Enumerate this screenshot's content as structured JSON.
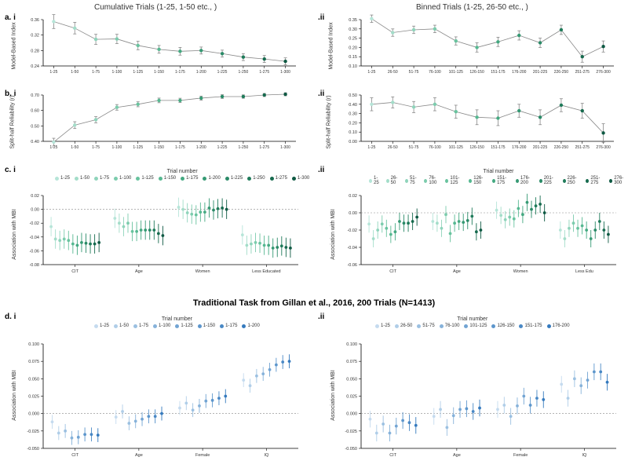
{
  "headers": {
    "left": "Cumulative Trials (1-25, 1-50 etc., )",
    "right": "Binned Trials (1-25, 26-50 etc., )"
  },
  "section_title": "Traditional Task from Gillan et al., 2016, 200 Trials (N=1413)",
  "palette_green": [
    "#b6e5d8",
    "#a3ddc9",
    "#8fd4bb",
    "#7cccad",
    "#68c39e",
    "#56b891",
    "#44a981",
    "#369a74",
    "#2a8a67",
    "#1f7b5a",
    "#166a4e",
    "#0e5943"
  ],
  "palette_blue": [
    "#c5dbef",
    "#b0cee8",
    "#9bc0e1",
    "#86b2da",
    "#72a4d3",
    "#5d96cc",
    "#4988c5",
    "#357abe",
    "#276bb0",
    "#1c5d9e",
    "#134e8c",
    "#0b3f7a"
  ],
  "panel_a_i": {
    "label": "a. i",
    "ylabel": "Model-Based Index",
    "ylim": [
      0.24,
      0.36
    ],
    "yticks": [
      0.24,
      0.28,
      0.32,
      0.36
    ],
    "x": [
      "1-25",
      "1-50",
      "1-75",
      "1-100",
      "1-125",
      "1-150",
      "1-175",
      "1-200",
      "1-225",
      "1-250",
      "1-275",
      "1-300"
    ],
    "values": [
      0.355,
      0.338,
      0.309,
      0.31,
      0.293,
      0.283,
      0.278,
      0.28,
      0.272,
      0.263,
      0.258,
      0.252
    ],
    "err": [
      0.018,
      0.015,
      0.013,
      0.012,
      0.011,
      0.01,
      0.01,
      0.009,
      0.009,
      0.009,
      0.009,
      0.009
    ]
  },
  "panel_a_ii": {
    "label": ".ii",
    "ylabel": "Model-Based Index",
    "ylim": [
      0.1,
      0.35
    ],
    "yticks": [
      0.1,
      0.15,
      0.2,
      0.25,
      0.3,
      0.35
    ],
    "x": [
      "1-25",
      "26-50",
      "51-75",
      "76-100",
      "101-125",
      "126-150",
      "151-175",
      "176-200",
      "201-225",
      "226-250",
      "251-275",
      "276-300"
    ],
    "values": [
      0.355,
      0.28,
      0.295,
      0.3,
      0.235,
      0.2,
      0.23,
      0.265,
      0.225,
      0.295,
      0.15,
      0.205
    ],
    "err": [
      0.02,
      0.02,
      0.02,
      0.02,
      0.022,
      0.025,
      0.025,
      0.025,
      0.025,
      0.025,
      0.03,
      0.03
    ]
  },
  "panel_b_i": {
    "label": "b. i",
    "ylabel": "Split-half Reliability (r)",
    "ylim": [
      0.4,
      0.7
    ],
    "yticks": [
      0.4,
      0.5,
      0.6,
      0.7
    ],
    "x": [
      "1-25",
      "1-50",
      "1-75",
      "1-100",
      "1-125",
      "1-150",
      "1-175",
      "1-200",
      "1-225",
      "1-250",
      "1-275",
      "1-300"
    ],
    "values": [
      0.395,
      0.505,
      0.54,
      0.62,
      0.64,
      0.665,
      0.665,
      0.68,
      0.69,
      0.69,
      0.7,
      0.705
    ],
    "err": [
      0.025,
      0.022,
      0.02,
      0.018,
      0.016,
      0.015,
      0.014,
      0.013,
      0.012,
      0.011,
      0.01,
      0.01
    ]
  },
  "panel_b_ii": {
    "label": ".ii",
    "ylabel": "Split-half Reliability (r)",
    "ylim": [
      0.0,
      0.5
    ],
    "yticks": [
      0.0,
      0.1,
      0.2,
      0.3,
      0.4,
      0.5
    ],
    "x": [
      "1-25",
      "26-50",
      "51-75",
      "76-100",
      "101-125",
      "126-150",
      "151-175",
      "176-200",
      "201-225",
      "226-250",
      "251-275",
      "276-300"
    ],
    "values": [
      0.4,
      0.42,
      0.37,
      0.4,
      0.32,
      0.26,
      0.25,
      0.33,
      0.26,
      0.39,
      0.33,
      0.09
    ],
    "err": [
      0.07,
      0.06,
      0.06,
      0.07,
      0.07,
      0.08,
      0.08,
      0.07,
      0.08,
      0.07,
      0.08,
      0.1
    ]
  },
  "panel_c_i": {
    "label": "c. i",
    "ylabel": "Association with MBI",
    "ylim": [
      -0.08,
      0.02
    ],
    "yticks": [
      -0.08,
      -0.06,
      -0.04,
      -0.02,
      0.0,
      0.02
    ],
    "legend_title": "Trial number",
    "legend": [
      "1-25",
      "1-50",
      "1-75",
      "1-100",
      "1-125",
      "1-150",
      "1-175",
      "1-200",
      "1-225",
      "1-250",
      "1-275",
      "1-300"
    ],
    "groups": [
      "CIT",
      "Age",
      "Women",
      "Less Educated"
    ],
    "series": [
      [
        -0.025,
        -0.043,
        -0.045,
        -0.043,
        -0.045,
        -0.05,
        -0.052,
        -0.048,
        -0.049,
        -0.05,
        -0.05,
        -0.048
      ],
      [
        -0.013,
        -0.02,
        -0.025,
        -0.02,
        -0.032,
        -0.032,
        -0.03,
        -0.03,
        -0.03,
        -0.03,
        -0.035,
        -0.038
      ],
      [
        0.003,
        0.0,
        -0.005,
        -0.007,
        -0.008,
        -0.004,
        -0.004,
        0.002,
        -0.001,
        0.001,
        0.002,
        0.0
      ],
      [
        -0.037,
        -0.052,
        -0.05,
        -0.048,
        -0.049,
        -0.052,
        -0.052,
        -0.056,
        -0.055,
        -0.053,
        -0.055,
        -0.056
      ]
    ],
    "err": 0.014
  },
  "panel_c_ii": {
    "label": ".ii",
    "ylabel": "Association with MBI",
    "ylim": [
      -0.06,
      0.02
    ],
    "yticks": [
      -0.06,
      -0.04,
      -0.02,
      0.0,
      0.02
    ],
    "legend_title": "Trial number",
    "legend": [
      "1-25",
      "26-50",
      "51-75",
      "76-100",
      "101-125",
      "126-150",
      "151-175",
      "176-200",
      "201-225",
      "226-250",
      "251-275",
      "276-300"
    ],
    "groups": [
      "CIT",
      "Age",
      "Women",
      "Less Edu"
    ],
    "series": [
      [
        -0.013,
        -0.03,
        -0.02,
        -0.013,
        -0.018,
        -0.025,
        -0.022,
        -0.01,
        -0.012,
        -0.012,
        -0.01,
        -0.005
      ],
      [
        -0.01,
        -0.012,
        -0.018,
        -0.002,
        -0.024,
        -0.012,
        -0.01,
        -0.011,
        -0.009,
        -0.004,
        -0.022,
        -0.02
      ],
      [
        0.003,
        -0.003,
        -0.008,
        -0.005,
        -0.007,
        0.005,
        -0.002,
        0.012,
        0.004,
        0.008,
        0.01,
        0.0
      ],
      [
        -0.02,
        -0.03,
        -0.018,
        -0.012,
        -0.018,
        -0.015,
        -0.02,
        -0.03,
        -0.02,
        -0.01,
        -0.02,
        -0.025
      ]
    ],
    "err": 0.01
  },
  "panel_d_i": {
    "label": "d. i",
    "ylabel": "Association with MBI",
    "ylim": [
      -0.05,
      0.1
    ],
    "yticks": [
      -0.05,
      -0.025,
      0.0,
      0.025,
      0.05,
      0.075,
      0.1
    ],
    "legend_title": "Trial number",
    "legend": [
      "1-25",
      "1-50",
      "1-75",
      "1-100",
      "1-125",
      "1-150",
      "1-175",
      "1-200"
    ],
    "groups": [
      "CIT",
      "Age",
      "Female",
      "IQ"
    ],
    "series": [
      [
        -0.012,
        -0.028,
        -0.025,
        -0.035,
        -0.034,
        -0.03,
        -0.03,
        -0.031
      ],
      [
        -0.005,
        0.003,
        -0.014,
        -0.011,
        -0.008,
        -0.004,
        -0.004,
        0.0
      ],
      [
        0.008,
        0.015,
        0.005,
        0.011,
        0.018,
        0.019,
        0.022,
        0.025
      ],
      [
        0.048,
        0.04,
        0.054,
        0.057,
        0.063,
        0.07,
        0.074,
        0.075
      ]
    ],
    "err": 0.01
  },
  "panel_d_ii": {
    "label": ".ii",
    "ylabel": "Association with MBI",
    "ylim": [
      -0.05,
      0.1
    ],
    "yticks": [
      -0.05,
      -0.025,
      0.0,
      0.025,
      0.05,
      0.075,
      0.1
    ],
    "legend_title": "Trial number",
    "legend": [
      "1-25",
      "26-50",
      "51-75",
      "76-100",
      "101-125",
      "126-150",
      "151-175",
      "176-200"
    ],
    "groups": [
      "CIT",
      "Age",
      "Female",
      "IQ"
    ],
    "series": [
      [
        -0.008,
        -0.028,
        -0.015,
        -0.028,
        -0.018,
        -0.01,
        -0.013,
        -0.017
      ],
      [
        -0.004,
        0.006,
        -0.02,
        -0.003,
        0.006,
        0.007,
        0.003,
        0.008
      ],
      [
        0.006,
        0.012,
        -0.004,
        0.011,
        0.025,
        0.012,
        0.022,
        0.02
      ],
      [
        0.042,
        0.022,
        0.05,
        0.04,
        0.048,
        0.06,
        0.06,
        0.045
      ]
    ],
    "err": 0.012
  }
}
